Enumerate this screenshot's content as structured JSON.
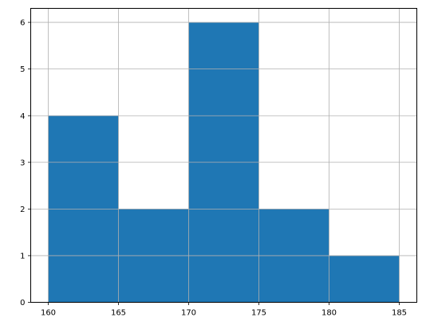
{
  "chart_data": {
    "type": "bar",
    "subtype": "histogram",
    "bins": [
      {
        "x0": 160,
        "x1": 165,
        "count": 4
      },
      {
        "x0": 165,
        "x1": 170,
        "count": 2
      },
      {
        "x0": 170,
        "x1": 175,
        "count": 6
      },
      {
        "x0": 175,
        "x1": 180,
        "count": 2
      },
      {
        "x0": 180,
        "x1": 185,
        "count": 1
      }
    ],
    "xlim": [
      158.75,
      186.25
    ],
    "ylim": [
      0,
      6.3
    ],
    "x_ticks": [
      160,
      165,
      170,
      175,
      180,
      185
    ],
    "y_ticks": [
      0,
      1,
      2,
      3,
      4,
      5,
      6
    ],
    "grid": true,
    "bar_color": "#1f77b4",
    "grid_color": "#b0b0b0",
    "title": "",
    "xlabel": "",
    "ylabel": ""
  }
}
